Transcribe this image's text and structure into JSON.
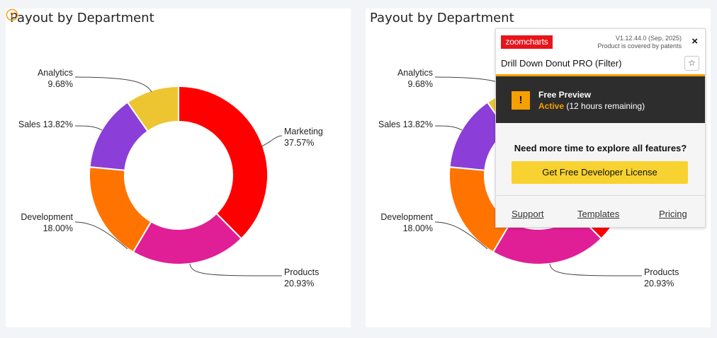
{
  "left_panel": {
    "title": "Payout by Department"
  },
  "right_panel": {
    "title": "Payout by Department"
  },
  "chart_data": [
    {
      "type": "pie",
      "title": "Payout by Department",
      "categories": [
        "Marketing",
        "Products",
        "Development",
        "Sales",
        "Analytics"
      ],
      "values": [
        37.57,
        20.93,
        18.0,
        13.82,
        9.68
      ],
      "colors": [
        "#ff0000",
        "#e01e95",
        "#ff7400",
        "#8c3ed8",
        "#ecc531"
      ],
      "label_lines": [
        [
          "Marketing",
          "37.57%"
        ],
        [
          "Products",
          "20.93%"
        ],
        [
          "Development",
          "18.00%"
        ],
        [
          "Sales 13.82%"
        ],
        [
          "Analytics",
          "9.68%"
        ]
      ],
      "donut": true
    },
    {
      "type": "pie",
      "title": "Payout by Department",
      "categories": [
        "Marketing",
        "Products",
        "Development",
        "Sales",
        "Analytics"
      ],
      "values": [
        37.57,
        20.93,
        18.0,
        13.82,
        9.68
      ],
      "colors": [
        "#ff0000",
        "#e01e95",
        "#ff7400",
        "#8c3ed8",
        "#ecc531"
      ],
      "label_lines": [
        [
          "Marketing",
          "37.57%"
        ],
        [
          "Products",
          "20.93%"
        ],
        [
          "Development",
          "18.00%"
        ],
        [
          "Sales 13.82%"
        ],
        [
          "Analytics",
          "9.68%"
        ]
      ],
      "donut": true
    }
  ],
  "help_icon": {
    "icon": "question-circle-icon",
    "color": "#f5a623"
  },
  "popup": {
    "logo_text": "zoomcharts",
    "version": "V1.12.44.0 (Sep, 2025)",
    "patent": "Product is covered by patents",
    "close_icon": "×",
    "product_name": "Drill Down Donut PRO (Filter)",
    "star_icon": "☆",
    "warning_icon": "!",
    "preview_title": "Free Preview",
    "active_label": "Active",
    "remaining": "(12 hours remaining)",
    "prompt": "Need more time to explore all features?",
    "button_label": "Get Free Developer License",
    "links": [
      "Support",
      "Templates",
      "Pricing"
    ],
    "accent_color": "#f6a000",
    "button_color": "#f8d230"
  }
}
